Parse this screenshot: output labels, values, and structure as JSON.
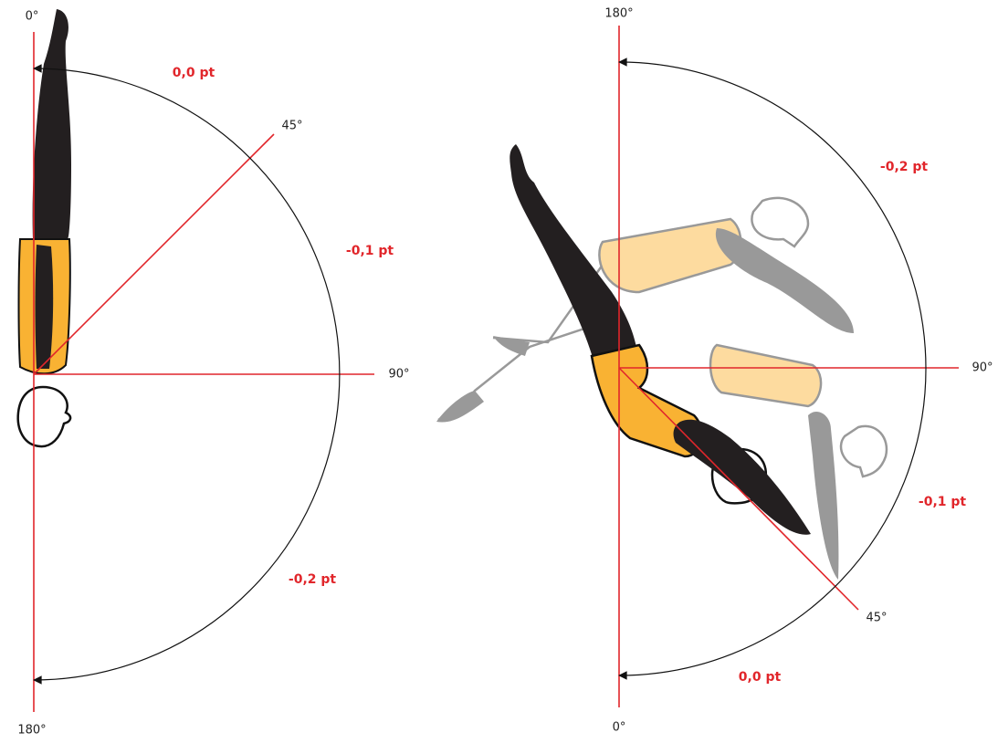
{
  "left": {
    "angles": [
      "0°",
      "45°",
      "90°",
      "180°"
    ],
    "deductions": [
      "0,0 pt",
      "-0,1 pt",
      "-0,2 pt"
    ]
  },
  "right": {
    "angles": [
      "180°",
      "90°",
      "45°",
      "0°"
    ],
    "deductions": [
      "-0,2 pt",
      "-0,1 pt",
      "0,0 pt"
    ]
  }
}
